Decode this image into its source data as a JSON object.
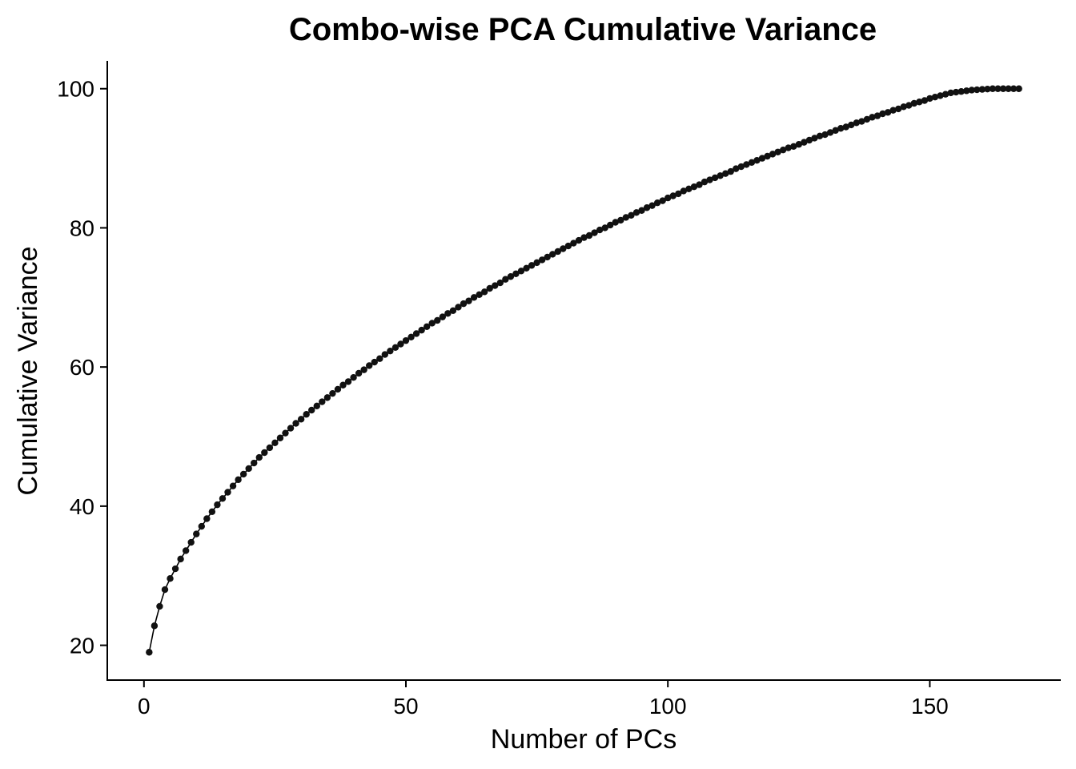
{
  "chart_data": {
    "type": "line",
    "title": "Combo-wise PCA Cumulative Variance",
    "xlabel": "Number of PCs",
    "ylabel": "Cumulative Variance",
    "xlim": [
      -7,
      175
    ],
    "ylim": [
      15,
      104
    ],
    "x_ticks": [
      0,
      50,
      100,
      150
    ],
    "y_ticks": [
      20,
      40,
      60,
      80,
      100
    ],
    "x_tick_labels": [
      "0",
      "50",
      "100",
      "150"
    ],
    "y_tick_labels": [
      "20",
      "40",
      "60",
      "80",
      "100"
    ],
    "grid": false,
    "legend": "none",
    "marker": "circle",
    "color": "#111111",
    "n_points": 167,
    "x": [
      1,
      2,
      3,
      4,
      5,
      6,
      7,
      8,
      9,
      10,
      11,
      12,
      13,
      14,
      15,
      16,
      17,
      18,
      19,
      20,
      21,
      22,
      23,
      24,
      25,
      26,
      27,
      28,
      29,
      30,
      31,
      32,
      33,
      34,
      35,
      36,
      37,
      38,
      39,
      40,
      41,
      42,
      43,
      44,
      45,
      46,
      47,
      48,
      49,
      50,
      51,
      52,
      53,
      54,
      55,
      56,
      57,
      58,
      59,
      60,
      61,
      62,
      63,
      64,
      65,
      66,
      67,
      68,
      69,
      70,
      71,
      72,
      73,
      74,
      75,
      76,
      77,
      78,
      79,
      80,
      81,
      82,
      83,
      84,
      85,
      86,
      87,
      88,
      89,
      90,
      91,
      92,
      93,
      94,
      95,
      96,
      97,
      98,
      99,
      100,
      101,
      102,
      103,
      104,
      105,
      106,
      107,
      108,
      109,
      110,
      111,
      112,
      113,
      114,
      115,
      116,
      117,
      118,
      119,
      120,
      121,
      122,
      123,
      124,
      125,
      126,
      127,
      128,
      129,
      130,
      131,
      132,
      133,
      134,
      135,
      136,
      137,
      138,
      139,
      140,
      141,
      142,
      143,
      144,
      145,
      146,
      147,
      148,
      149,
      150,
      151,
      152,
      153,
      154,
      155,
      156,
      157,
      158,
      159,
      160,
      161,
      162,
      163,
      164,
      165,
      166,
      167
    ],
    "y": [
      19.0,
      22.8,
      25.6,
      28.0,
      29.6,
      31.0,
      32.4,
      33.6,
      34.8,
      36.0,
      37.1,
      38.2,
      39.2,
      40.2,
      41.1,
      42.0,
      42.9,
      43.8,
      44.6,
      45.4,
      46.2,
      47.0,
      47.7,
      48.4,
      49.1,
      49.8,
      50.5,
      51.2,
      51.9,
      52.5,
      53.2,
      53.8,
      54.4,
      55.0,
      55.6,
      56.2,
      56.8,
      57.4,
      57.9,
      58.5,
      59.1,
      59.6,
      60.2,
      60.7,
      61.2,
      61.8,
      62.3,
      62.8,
      63.3,
      63.8,
      64.3,
      64.8,
      65.3,
      65.8,
      66.3,
      66.7,
      67.2,
      67.7,
      68.1,
      68.6,
      69.1,
      69.5,
      70.0,
      70.4,
      70.8,
      71.3,
      71.7,
      72.1,
      72.6,
      73.0,
      73.4,
      73.8,
      74.2,
      74.6,
      75.0,
      75.4,
      75.8,
      76.2,
      76.6,
      77.0,
      77.4,
      77.8,
      78.2,
      78.6,
      78.9,
      79.3,
      79.7,
      80.0,
      80.4,
      80.8,
      81.1,
      81.5,
      81.8,
      82.2,
      82.5,
      82.9,
      83.2,
      83.6,
      83.9,
      84.3,
      84.6,
      84.9,
      85.3,
      85.6,
      85.9,
      86.2,
      86.6,
      86.9,
      87.2,
      87.5,
      87.8,
      88.1,
      88.5,
      88.8,
      89.1,
      89.4,
      89.7,
      90.0,
      90.3,
      90.6,
      90.9,
      91.2,
      91.5,
      91.7,
      92.0,
      92.3,
      92.6,
      92.9,
      93.2,
      93.4,
      93.7,
      94.0,
      94.3,
      94.5,
      94.8,
      95.1,
      95.3,
      95.6,
      95.9,
      96.1,
      96.4,
      96.6,
      96.9,
      97.1,
      97.4,
      97.6,
      97.9,
      98.1,
      98.3,
      98.6,
      98.8,
      99.0,
      99.2,
      99.4,
      99.5,
      99.6,
      99.7,
      99.8,
      99.85,
      99.9,
      99.95,
      100.0,
      100.0,
      100.0,
      100.0,
      100.0,
      100.0
    ]
  }
}
